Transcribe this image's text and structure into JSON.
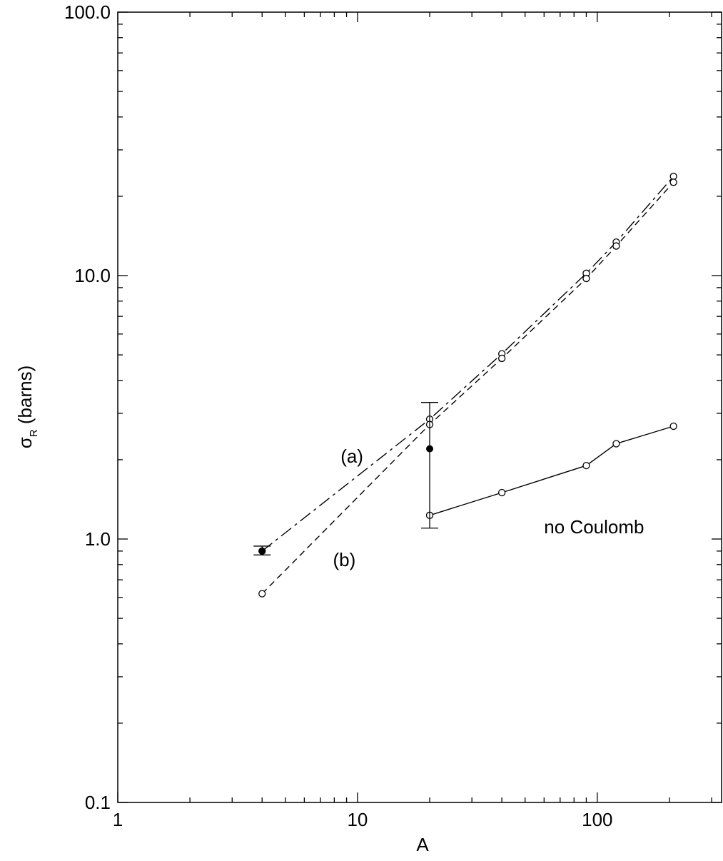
{
  "chart_data": {
    "type": "scatter",
    "title": "",
    "xlabel": "A",
    "ylabel_main": "σ",
    "ylabel_sub": "R",
    "ylabel_rest": " (barns)",
    "x_scale": "log",
    "y_scale": "log",
    "xlim": [
      1,
      330
    ],
    "ylim": [
      0.1,
      100
    ],
    "grid": false,
    "legend": "none",
    "x_ticks": [
      {
        "value": 1,
        "label": "1"
      },
      {
        "value": 10,
        "label": "10"
      },
      {
        "value": 100,
        "label": "100"
      }
    ],
    "y_ticks": [
      {
        "value": 0.1,
        "label": "0.1"
      },
      {
        "value": 1,
        "label": "1.0"
      },
      {
        "value": 10,
        "label": "10.0"
      },
      {
        "value": 100,
        "label": "100.0"
      }
    ],
    "series": [
      {
        "key": "a",
        "style": "dashdot",
        "x": [
          4,
          20,
          40,
          90,
          120,
          208
        ],
        "y": [
          0.9,
          2.85,
          5.05,
          10.2,
          13.4,
          23.8
        ]
      },
      {
        "key": "b",
        "style": "dashed",
        "x": [
          4,
          20,
          40,
          90,
          120,
          208
        ],
        "y": [
          0.62,
          2.72,
          4.85,
          9.75,
          12.95,
          22.6
        ]
      },
      {
        "key": "no-coulomb",
        "style": "solid",
        "x": [
          20,
          40,
          90,
          120,
          208
        ],
        "y": [
          1.23,
          1.5,
          1.9,
          2.3,
          2.68
        ]
      }
    ],
    "measurements": [
      {
        "x": 4,
        "y": 0.9,
        "yerr_low": 0.87,
        "yerr_high": 0.94
      },
      {
        "x": 20,
        "y": 2.2,
        "yerr_low": 1.1,
        "yerr_high": 3.3
      }
    ],
    "annotations": [
      {
        "key": "label-a",
        "text": "(a)",
        "x": 8.5,
        "y": 1.95
      },
      {
        "key": "label-b",
        "text": "(b)",
        "x": 7.9,
        "y": 0.79
      },
      {
        "key": "label-no-coulomb",
        "text": "no Coulomb",
        "x": 60,
        "y": 1.05
      }
    ]
  }
}
